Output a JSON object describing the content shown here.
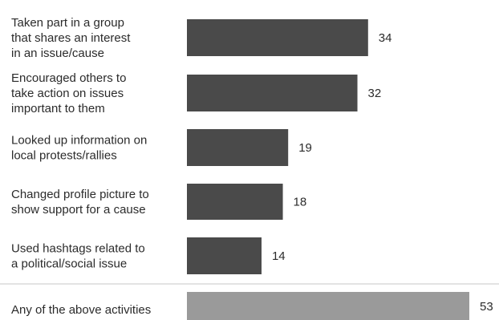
{
  "chart_data": {
    "type": "bar",
    "orientation": "horizontal",
    "categories": [
      "Taken part in a group that shares an interest in an issue/cause",
      "Encouraged others to take action on issues important to them",
      "Looked up information on local protests/rallies",
      "Changed profile picture to show support for a cause",
      "Used hashtags related to a political/social issue",
      "Any of the above activities"
    ],
    "category_lines": [
      [
        "Taken part in a group",
        "that shares an interest",
        "in an issue/cause"
      ],
      [
        "Encouraged others to",
        "take action on issues",
        "important to them"
      ],
      [
        "Looked up information on",
        "local protests/rallies"
      ],
      [
        "Changed profile picture to",
        "show support for a cause"
      ],
      [
        "Used hashtags related to",
        "a political/social issue"
      ],
      [
        "Any of the above activities"
      ]
    ],
    "values": [
      34,
      32,
      19,
      18,
      14,
      53
    ],
    "value_labels": [
      "34",
      "32",
      "19",
      "18",
      "14",
      "53"
    ],
    "colors": [
      "#4a4a4a",
      "#4a4a4a",
      "#4a4a4a",
      "#4a4a4a",
      "#4a4a4a",
      "#9a9a9a"
    ],
    "divider_before_last": true,
    "divider_color": "#e3e3e3",
    "grid": false,
    "legend": "none"
  }
}
